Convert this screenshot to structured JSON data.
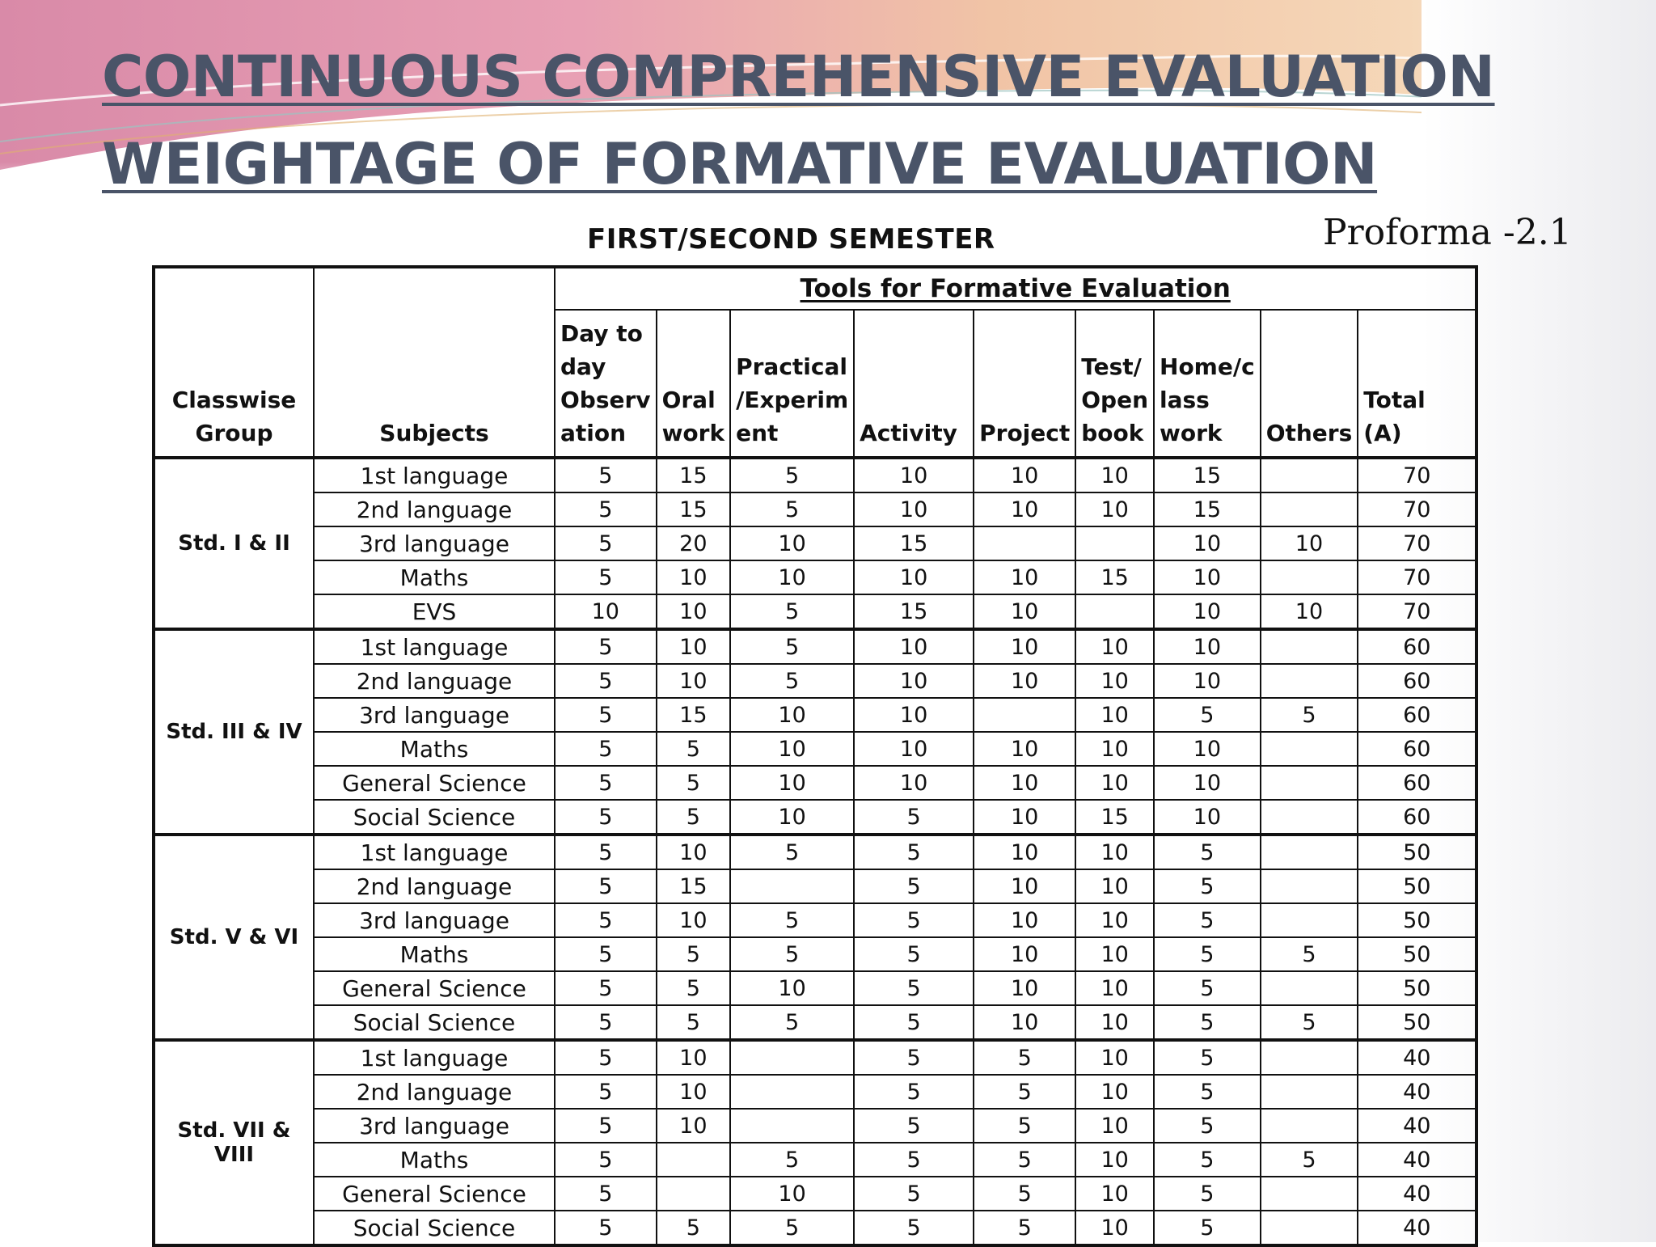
{
  "slide": {
    "title_line1": "CONTINUOUS COMPREHENSIVE EVALUATION",
    "title_line2": "WEIGHTAGE OF FORMATIVE EVALUATION",
    "semester_heading": "FIRST/SECOND  SEMESTER",
    "proforma_label": "Proforma -2.1",
    "accent_colors": {
      "title": "#4a5468",
      "banner_pink": "#e07ba0",
      "banner_peach": "#f2b98a"
    }
  },
  "table": {
    "group_header": "Classwise Group",
    "subjects_header": "Subjects",
    "tools_header": "Tools for Formative Evaluation",
    "column_headers": [
      "Day to day Observ ation",
      "Oral work",
      "Practical /Experim ent",
      "Activity",
      "Project",
      "Test/ Open book",
      "Home/c lass work",
      "Others",
      "Total (A)"
    ],
    "groups": [
      {
        "name": "Std. I & II",
        "rows": [
          {
            "subject": "1st language",
            "values": [
              "5",
              "15",
              "5",
              "10",
              "10",
              "10",
              "15",
              "",
              "70"
            ]
          },
          {
            "subject": "2nd language",
            "values": [
              "5",
              "15",
              "5",
              "10",
              "10",
              "10",
              "15",
              "",
              "70"
            ]
          },
          {
            "subject": "3rd language",
            "values": [
              "5",
              "20",
              "10",
              "15",
              "",
              "",
              "10",
              "10",
              "70"
            ]
          },
          {
            "subject": "Maths",
            "values": [
              "5",
              "10",
              "10",
              "10",
              "10",
              "15",
              "10",
              "",
              "70"
            ]
          },
          {
            "subject": "EVS",
            "values": [
              "10",
              "10",
              "5",
              "15",
              "10",
              "",
              "10",
              "10",
              "70"
            ]
          }
        ]
      },
      {
        "name": "Std. III & IV",
        "rows": [
          {
            "subject": "1st language",
            "values": [
              "5",
              "10",
              "5",
              "10",
              "10",
              "10",
              "10",
              "",
              "60"
            ]
          },
          {
            "subject": "2nd language",
            "values": [
              "5",
              "10",
              "5",
              "10",
              "10",
              "10",
              "10",
              "",
              "60"
            ]
          },
          {
            "subject": "3rd language",
            "values": [
              "5",
              "15",
              "10",
              "10",
              "",
              "10",
              "5",
              "5",
              "60"
            ]
          },
          {
            "subject": "Maths",
            "values": [
              "5",
              "5",
              "10",
              "10",
              "10",
              "10",
              "10",
              "",
              "60"
            ]
          },
          {
            "subject": "General Science",
            "values": [
              "5",
              "5",
              "10",
              "10",
              "10",
              "10",
              "10",
              "",
              "60"
            ]
          },
          {
            "subject": "Social Science",
            "values": [
              "5",
              "5",
              "10",
              "5",
              "10",
              "15",
              "10",
              "",
              "60"
            ]
          }
        ]
      },
      {
        "name": "Std. V & VI",
        "rows": [
          {
            "subject": "1st language",
            "values": [
              "5",
              "10",
              "5",
              "5",
              "10",
              "10",
              "5",
              "",
              "50"
            ]
          },
          {
            "subject": "2nd language",
            "values": [
              "5",
              "15",
              "",
              "5",
              "10",
              "10",
              "5",
              "",
              "50"
            ]
          },
          {
            "subject": "3rd language",
            "values": [
              "5",
              "10",
              "5",
              "5",
              "10",
              "10",
              "5",
              "",
              "50"
            ]
          },
          {
            "subject": "Maths",
            "values": [
              "5",
              "5",
              "5",
              "5",
              "10",
              "10",
              "5",
              "5",
              "50"
            ]
          },
          {
            "subject": "General Science",
            "values": [
              "5",
              "5",
              "10",
              "5",
              "10",
              "10",
              "5",
              "",
              "50"
            ]
          },
          {
            "subject": "Social Science",
            "values": [
              "5",
              "5",
              "5",
              "5",
              "10",
              "10",
              "5",
              "5",
              "50"
            ]
          }
        ]
      },
      {
        "name": "Std. VII & VIII",
        "rows": [
          {
            "subject": "1st language",
            "values": [
              "5",
              "10",
              "",
              "5",
              "5",
              "10",
              "5",
              "",
              "40"
            ]
          },
          {
            "subject": "2nd language",
            "values": [
              "5",
              "10",
              "",
              "5",
              "5",
              "10",
              "5",
              "",
              "40"
            ]
          },
          {
            "subject": "3rd language",
            "values": [
              "5",
              "10",
              "",
              "5",
              "5",
              "10",
              "5",
              "",
              "40"
            ]
          },
          {
            "subject": "Maths",
            "values": [
              "5",
              "",
              "5",
              "5",
              "5",
              "10",
              "5",
              "5",
              "40"
            ]
          },
          {
            "subject": "General Science",
            "values": [
              "5",
              "",
              "10",
              "5",
              "5",
              "10",
              "5",
              "",
              "40"
            ]
          },
          {
            "subject": "Social Science",
            "values": [
              "5",
              "5",
              "5",
              "5",
              "5",
              "10",
              "5",
              "",
              "40"
            ]
          }
        ]
      }
    ]
  }
}
